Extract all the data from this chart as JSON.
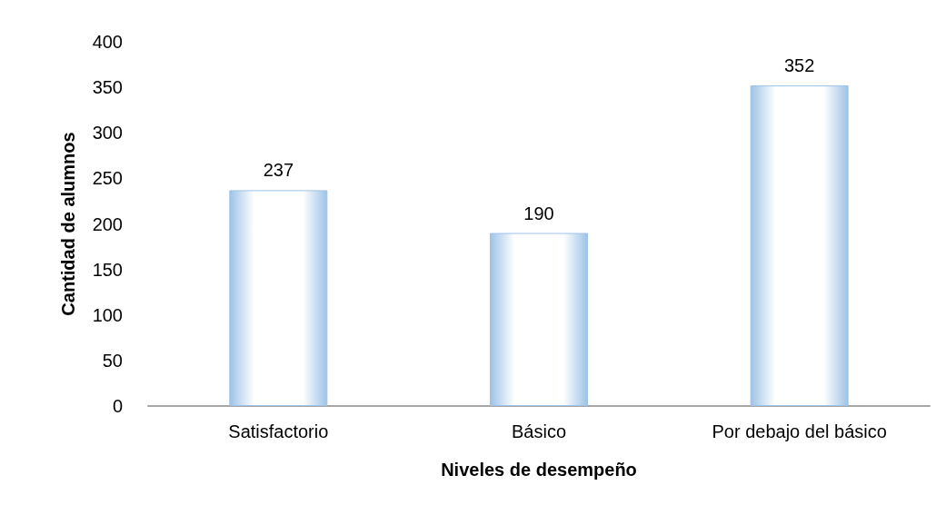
{
  "chart_data": {
    "type": "bar",
    "xlabel": "Niveles de desempeño",
    "ylabel": "Cantidad de alumnos",
    "categories": [
      "Satisfactorio",
      "Básico",
      "Por debajo del básico"
    ],
    "values": [
      237,
      190,
      352
    ],
    "color": "#9dc3e6",
    "ylim": [
      0,
      400
    ],
    "yticks": [
      0,
      50,
      100,
      150,
      200,
      250,
      300,
      350,
      400
    ],
    "grid": false,
    "data_labels": true
  }
}
